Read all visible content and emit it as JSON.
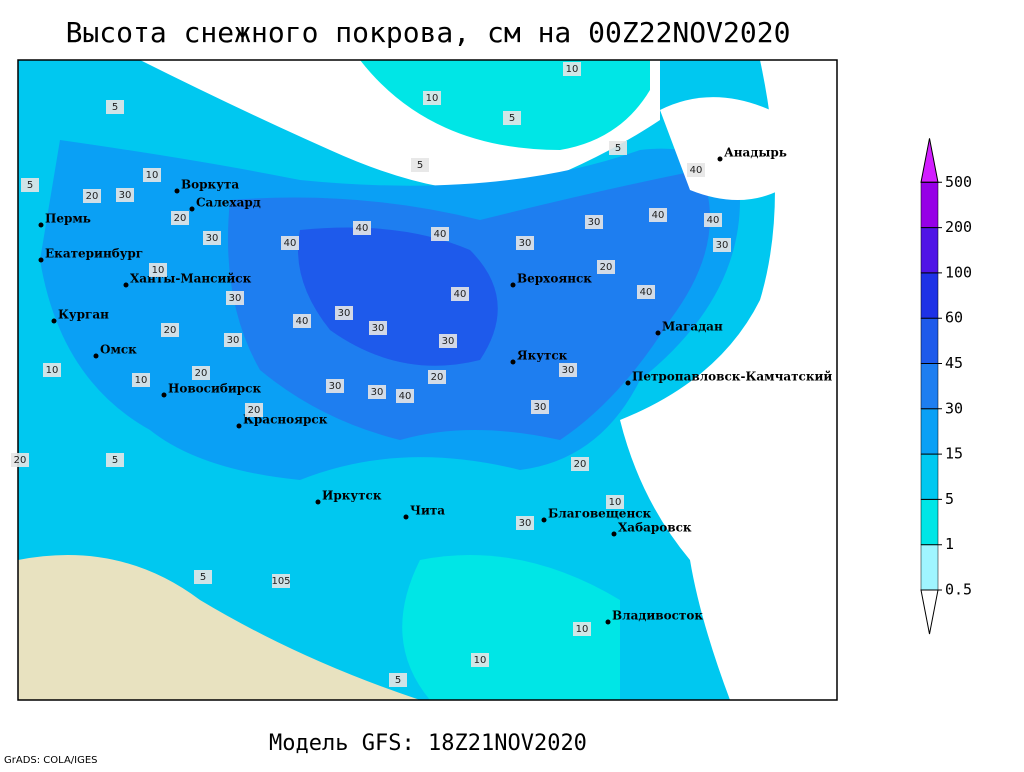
{
  "title": "Высота снежного покрова, см на 00Z22NOV2020",
  "footer": "Модель GFS: 18Z21NOV2020",
  "credit": "GrADS: COLA/IGES",
  "map": {
    "cities": [
      "Воркута",
      "Салехард",
      "Пермь",
      "Екатеринбург",
      "Ханты-Мансийск",
      "Курган",
      "Омск",
      "Новосибирск",
      "Красноярск",
      "Иркутск",
      "Чита",
      "Благовещенск",
      "Хабаровск",
      "Владивосток",
      "Якутск",
      "Верхоянск",
      "Магадан",
      "Петропавловск-Камчатский",
      "Анадырь"
    ],
    "contour_labels": [
      10,
      5,
      5,
      10,
      5,
      5,
      5,
      20,
      30,
      10,
      20,
      10,
      30,
      40,
      40,
      40,
      40,
      30,
      40,
      40,
      30,
      30,
      20,
      30,
      40,
      30,
      30,
      40,
      30,
      20,
      30,
      10,
      10,
      30,
      20,
      20,
      30,
      30,
      20,
      20,
      105,
      5,
      5,
      10,
      10,
      5,
      30,
      40,
      30,
      40,
      20,
      10
    ]
  },
  "legend": {
    "levels": [
      0.5,
      1,
      5,
      15,
      30,
      45,
      60,
      100,
      200,
      500
    ],
    "colors": [
      "#ffffff",
      "#a0f5ff",
      "#00e6e6",
      "#00c8f0",
      "#0aa0f5",
      "#1e7ef0",
      "#1e5aeb",
      "#1e32e6",
      "#5014e6",
      "#9600e6",
      "#d21eff"
    ]
  }
}
